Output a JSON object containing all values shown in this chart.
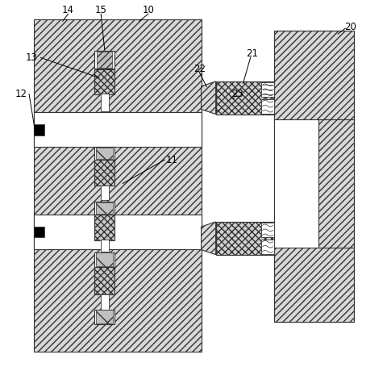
{
  "bg_color": "#ffffff",
  "line_color": "#333333",
  "figsize": [
    4.81,
    4.55
  ],
  "dpi": 100,
  "hatch_fc": "#d8d8d8",
  "hatch_fc2": "#e0e0e0",
  "body_fc": "#d8d8d8"
}
